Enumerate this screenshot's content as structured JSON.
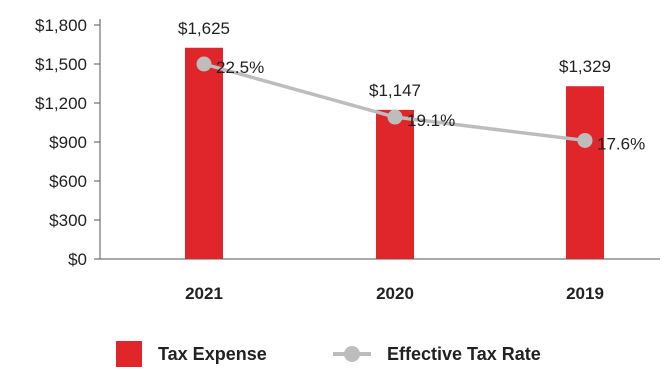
{
  "chart_data": {
    "type": "bar",
    "categories": [
      "2021",
      "2020",
      "2019"
    ],
    "series": [
      {
        "name": "Tax Expense",
        "type": "bar",
        "values": [
          1625,
          1147,
          1329
        ],
        "labels": [
          "$1,625",
          "$1,147",
          "$1,329"
        ],
        "color": "#e0262b"
      },
      {
        "name": "Effective Tax Rate",
        "type": "line",
        "values": [
          22.5,
          19.1,
          17.6
        ],
        "labels": [
          "22.5%",
          "19.1%",
          "17.6%"
        ],
        "color": "#bdbdbd"
      }
    ],
    "yticks": [
      0,
      300,
      600,
      900,
      1200,
      1500,
      1800
    ],
    "ytick_labels": [
      "$0",
      "$300",
      "$600",
      "$900",
      "$1,200",
      "$1,500",
      "$1,800"
    ],
    "ylim": [
      0,
      1800
    ],
    "y2lim": [
      10,
      25
    ],
    "grid": false,
    "legend_position": "bottom"
  },
  "legend": {
    "bar_label": "Tax Expense",
    "line_label": "Effective Tax Rate"
  }
}
